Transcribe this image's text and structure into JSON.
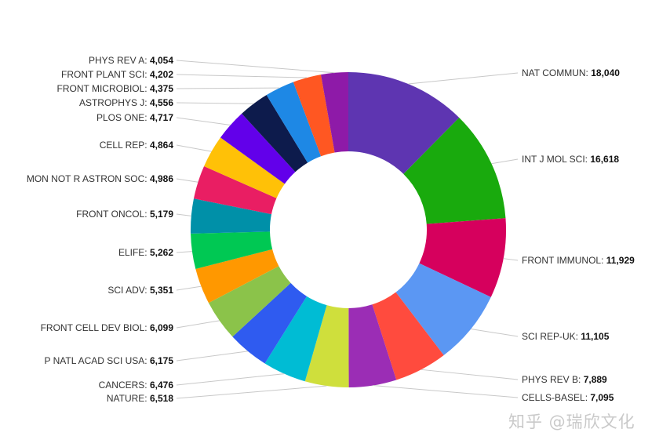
{
  "chart_data": {
    "type": "pie",
    "style": "donut",
    "categories": [
      "NAT COMMUN",
      "INT J MOL SCI",
      "FRONT IMMUNOL",
      "SCI REP-UK",
      "PHYS REV B",
      "CELLS-BASEL",
      "NATURE",
      "CANCERS",
      "P NATL ACAD SCI USA",
      "FRONT CELL DEV BIOL",
      "SCI ADV",
      "ELIFE",
      "FRONT ONCOL",
      "MON NOT R ASTRON SOC",
      "CELL REP",
      "PLOS ONE",
      "ASTROPHYS J",
      "FRONT MICROBIOL",
      "FRONT PLANT SCI",
      "PHYS REV A"
    ],
    "values": [
      18040,
      16618,
      11929,
      11105,
      7889,
      7095,
      6518,
      6476,
      6175,
      6099,
      5351,
      5262,
      5179,
      4986,
      4864,
      4717,
      4556,
      4375,
      4202,
      4054
    ],
    "value_labels": [
      "18,040",
      "16,618",
      "11,929",
      "11,105",
      "7,889",
      "7,095",
      "6,518",
      "6,476",
      "6,175",
      "6,099",
      "5,351",
      "5,262",
      "5,179",
      "4,986",
      "4,864",
      "4,717",
      "4,556",
      "4,375",
      "4,202",
      "4,054"
    ],
    "colors": [
      "#5e35b1",
      "#19aa0d",
      "#d6005d",
      "#5b97f3",
      "#ff4b3e",
      "#9b2db5",
      "#cfdf3c",
      "#00bcd4",
      "#2f5bf0",
      "#8bc34a",
      "#ff9800",
      "#00c853",
      "#0090a8",
      "#e91e63",
      "#ffc107",
      "#6200ea",
      "#0d1b4c",
      "#1e88e5",
      "#ff5722",
      "#8e1aa8"
    ],
    "legend": "none"
  },
  "watermark": "知乎 @瑞欣文化"
}
